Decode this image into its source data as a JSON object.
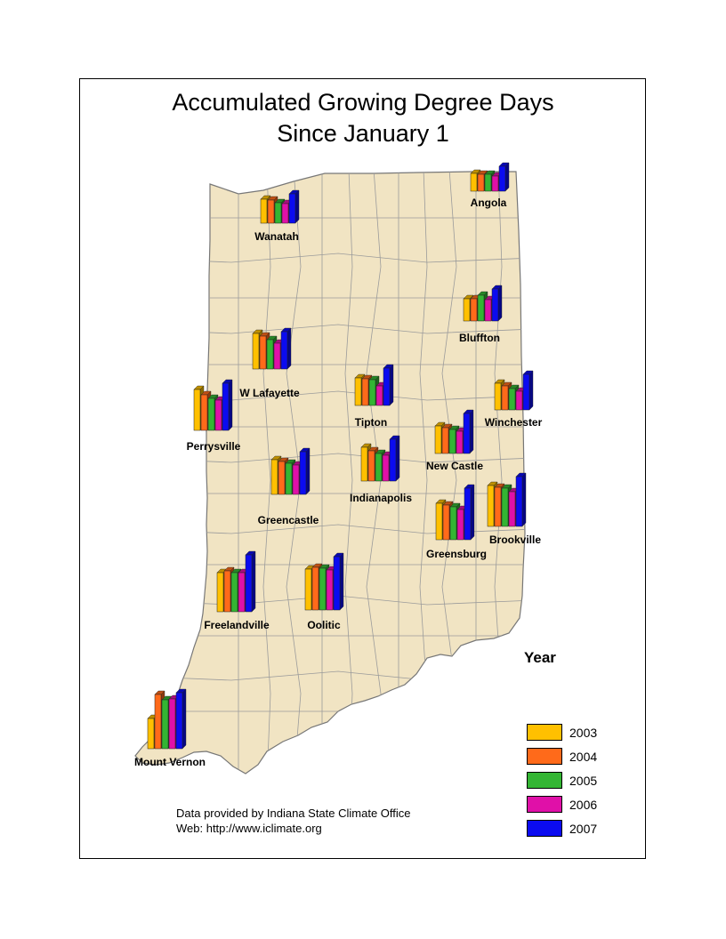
{
  "map": {
    "title_line1": "Accumulated Growing Degree Days",
    "title_line2": "Since January 1",
    "colors": {
      "land": "#f1e4c3",
      "county_border": "#9b9b9b",
      "outline": "#777777"
    }
  },
  "legend": {
    "title": "Year",
    "items": [
      {
        "label": "2003",
        "color": "#ffc000"
      },
      {
        "label": "2004",
        "color": "#ff6a1a"
      },
      {
        "label": "2005",
        "color": "#33b533"
      },
      {
        "label": "2006",
        "color": "#e010a8"
      },
      {
        "label": "2007",
        "color": "#0b0bf0"
      }
    ]
  },
  "credits": {
    "line1": "Data provided by Indiana State Climate Office",
    "line2": "Web:  http://www.iclimate.org"
  },
  "chart_data": {
    "type": "bar",
    "categories": [
      "2003",
      "2004",
      "2005",
      "2006",
      "2007"
    ],
    "unit_note": "relative bar heights (no axis printed)",
    "stations": [
      {
        "name": "Angola",
        "values": [
          20,
          19,
          19,
          17,
          28
        ]
      },
      {
        "name": "Wanatah",
        "values": [
          27,
          26,
          23,
          22,
          33
        ]
      },
      {
        "name": "Bluffton",
        "values": [
          25,
          25,
          29,
          24,
          36
        ]
      },
      {
        "name": "W Lafayette",
        "values": [
          40,
          37,
          33,
          29,
          42
        ]
      },
      {
        "name": "Perrysville",
        "values": [
          46,
          40,
          36,
          34,
          53
        ]
      },
      {
        "name": "Tipton",
        "values": [
          31,
          30,
          29,
          22,
          42
        ]
      },
      {
        "name": "Winchester",
        "values": [
          30,
          27,
          24,
          21,
          40
        ]
      },
      {
        "name": "New Castle",
        "values": [
          31,
          29,
          27,
          25,
          45
        ]
      },
      {
        "name": "Indianapolis",
        "values": [
          38,
          34,
          31,
          29,
          47
        ]
      },
      {
        "name": "Greencastle",
        "values": [
          39,
          37,
          35,
          33,
          48
        ]
      },
      {
        "name": "Brookville",
        "values": [
          46,
          44,
          43,
          39,
          56
        ]
      },
      {
        "name": "Greensburg",
        "values": [
          41,
          39,
          37,
          34,
          58
        ]
      },
      {
        "name": "Freelandville",
        "values": [
          44,
          46,
          44,
          44,
          64
        ]
      },
      {
        "name": "Oolitic",
        "values": [
          46,
          48,
          47,
          45,
          60
        ]
      },
      {
        "name": "Mount Vernon",
        "values": [
          34,
          61,
          55,
          56,
          63
        ]
      }
    ]
  }
}
